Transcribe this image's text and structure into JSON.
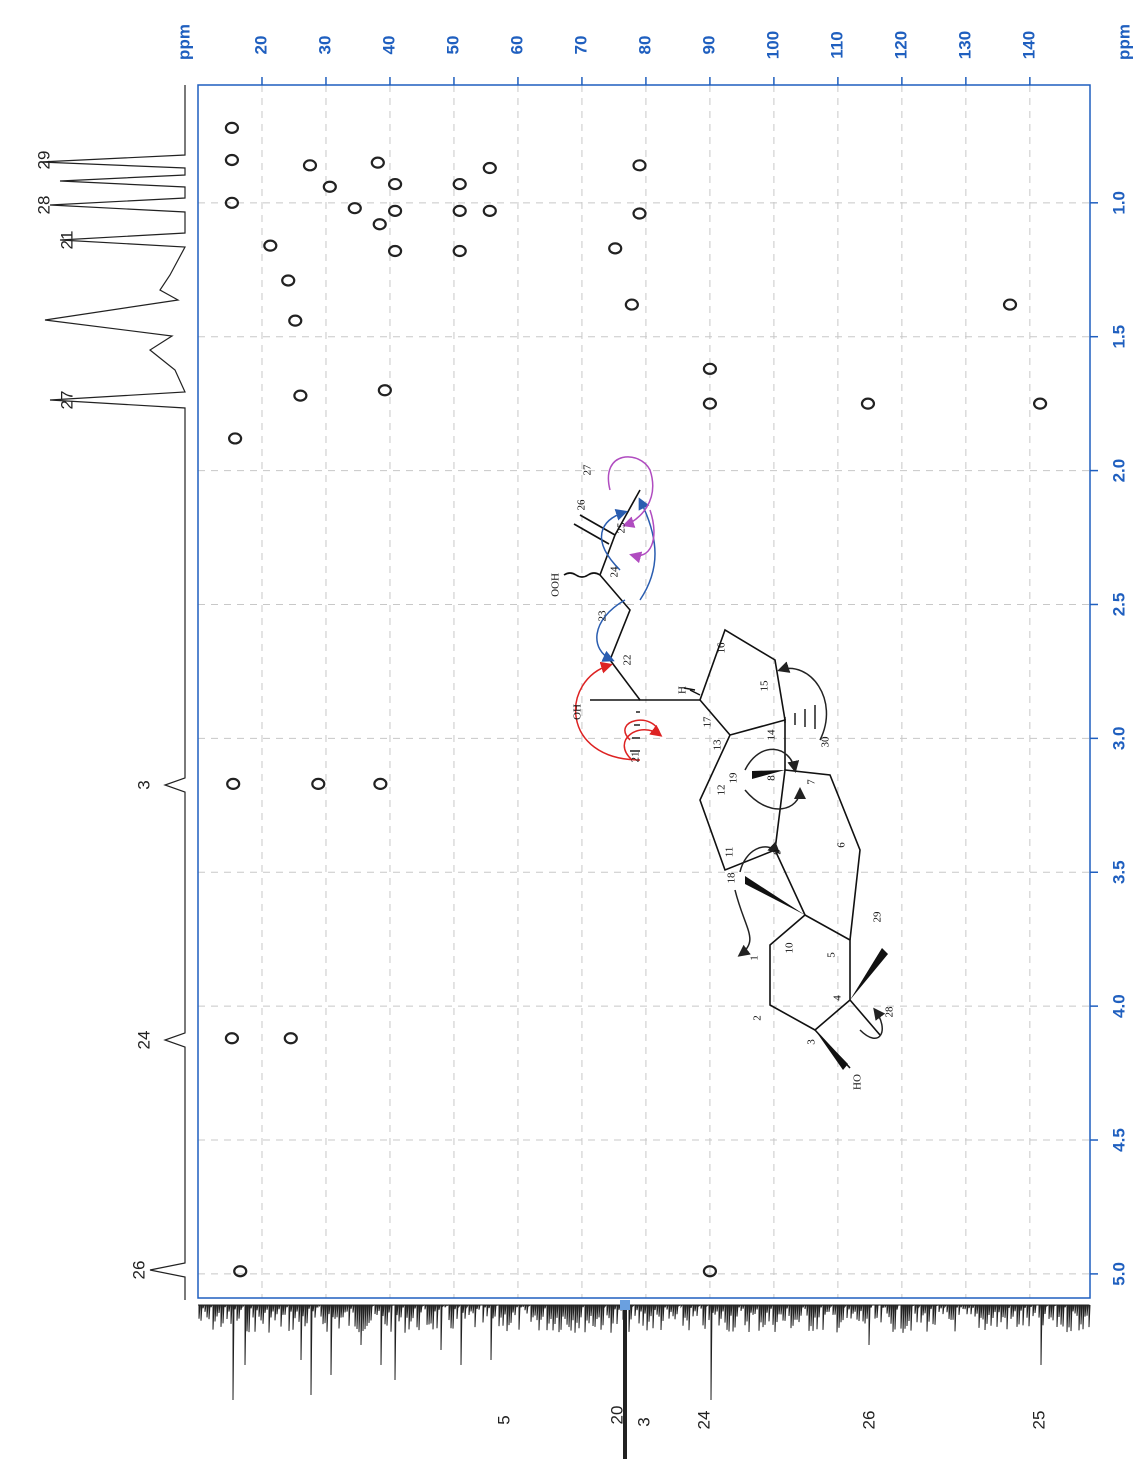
{
  "chart_data": {
    "type": "scatter",
    "xlabel": "ppm",
    "ylabel": "ppm",
    "xlim": [
      0.56,
      5.09
    ],
    "xticks": [
      {
        "value": 1,
        "label": "1.0"
      },
      {
        "value": 1.5,
        "label": "1.5"
      },
      {
        "value": 2,
        "label": "2.0"
      },
      {
        "value": 2.5,
        "label": "2.5"
      },
      {
        "value": 3,
        "label": "3.0"
      },
      {
        "value": 3.5,
        "label": "3.5"
      },
      {
        "value": 4,
        "label": "4.0"
      },
      {
        "value": 4.5,
        "label": "4.5"
      },
      {
        "value": 5,
        "label": "5.0"
      }
    ],
    "ylim": [
      10,
      149.4
    ],
    "yticks": [
      20,
      30,
      40,
      50,
      60,
      70,
      80,
      90,
      100,
      110,
      120,
      130,
      140
    ],
    "grid": true,
    "color": "#222222",
    "x": [
      0.72,
      0.84,
      1.0,
      1.16,
      0.86,
      0.94,
      1.02,
      0.85,
      0.93,
      1.03,
      1.18,
      0.93,
      1.03,
      1.18,
      0.87,
      1.03,
      0.86,
      1.04,
      1.17,
      1.38,
      1.62,
      1.75,
      1.75,
      1.75,
      1.38,
      1.88,
      1.29,
      1.44,
      1.72,
      1.7,
      1.08,
      3.17,
      3.17,
      3.17,
      4.12,
      4.12,
      4.99,
      4.99
    ],
    "values": [
      15.3,
      15.3,
      15.3,
      21.3,
      27.5,
      30.6,
      34.5,
      38.1,
      40.8,
      40.8,
      40.8,
      50.9,
      50.9,
      50.9,
      55.6,
      55.6,
      79,
      79,
      75.2,
      77.8,
      90,
      90,
      114.7,
      141.6,
      136.9,
      15.8,
      24.1,
      25.2,
      26,
      39.2,
      38.4,
      15.5,
      28.8,
      38.5,
      15.3,
      24.5,
      16.6,
      90
    ]
  },
  "projections": {
    "proton": [
      "29",
      "28",
      "21",
      "27",
      "3",
      "24",
      "26"
    ],
    "carbon": [
      "5",
      "20",
      "3",
      "24",
      "26",
      "25"
    ]
  },
  "structure": {
    "atoms": [
      "1",
      "2",
      "3",
      "4",
      "5",
      "6",
      "7",
      "8",
      "9",
      "10",
      "11",
      "12",
      "13",
      "14",
      "15",
      "16",
      "17",
      "18",
      "19",
      "21",
      "22",
      "23",
      "24",
      "25",
      "26",
      "27",
      "28",
      "29",
      "30"
    ],
    "groups": [
      "HO",
      "OH",
      "OOH",
      "H"
    ]
  }
}
